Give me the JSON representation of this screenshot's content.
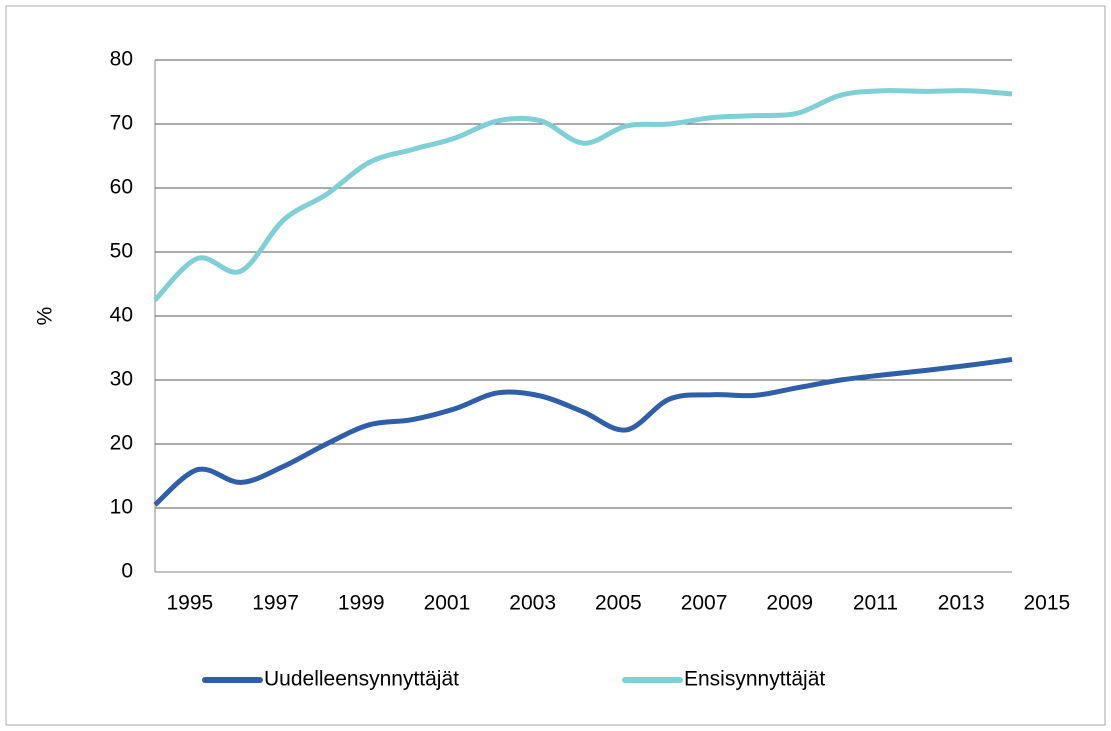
{
  "chart_data": {
    "type": "line",
    "y_label": "%",
    "x": [
      1994,
      1995,
      1996,
      1997,
      1998,
      1999,
      2000,
      2001,
      2002,
      2003,
      2004,
      2005,
      2006,
      2007,
      2008,
      2009,
      2010,
      2011,
      2012,
      2013,
      2014
    ],
    "series": [
      {
        "name": "Uudelleensynnyttäjät",
        "color": "#2e5fa8",
        "values": [
          10.5,
          16,
          14,
          16.5,
          20,
          23,
          23.8,
          25.5,
          28,
          27.5,
          25,
          22.2,
          27,
          27.7,
          27.6,
          28.8,
          30,
          30.8,
          31.5,
          32.3,
          33.2
        ]
      },
      {
        "name": "Ensisynnyttäjät",
        "color": "#7fcfd6",
        "values": [
          42.5,
          49,
          47,
          55,
          59,
          64,
          66,
          67.8,
          70.5,
          70.5,
          67,
          69.7,
          70,
          71,
          71.3,
          71.7,
          74.5,
          75.2,
          75.1,
          75.2,
          74.7
        ]
      }
    ],
    "xlim": [
      1994,
      2014
    ],
    "xticks": [
      1995,
      1997,
      1999,
      2001,
      2003,
      2005,
      2007,
      2009,
      2011,
      2013,
      2015
    ],
    "ylim": [
      0,
      80
    ],
    "yticks": [
      0,
      10,
      20,
      30,
      40,
      50,
      60,
      70,
      80
    ],
    "grid": true,
    "legend": "bottom"
  }
}
